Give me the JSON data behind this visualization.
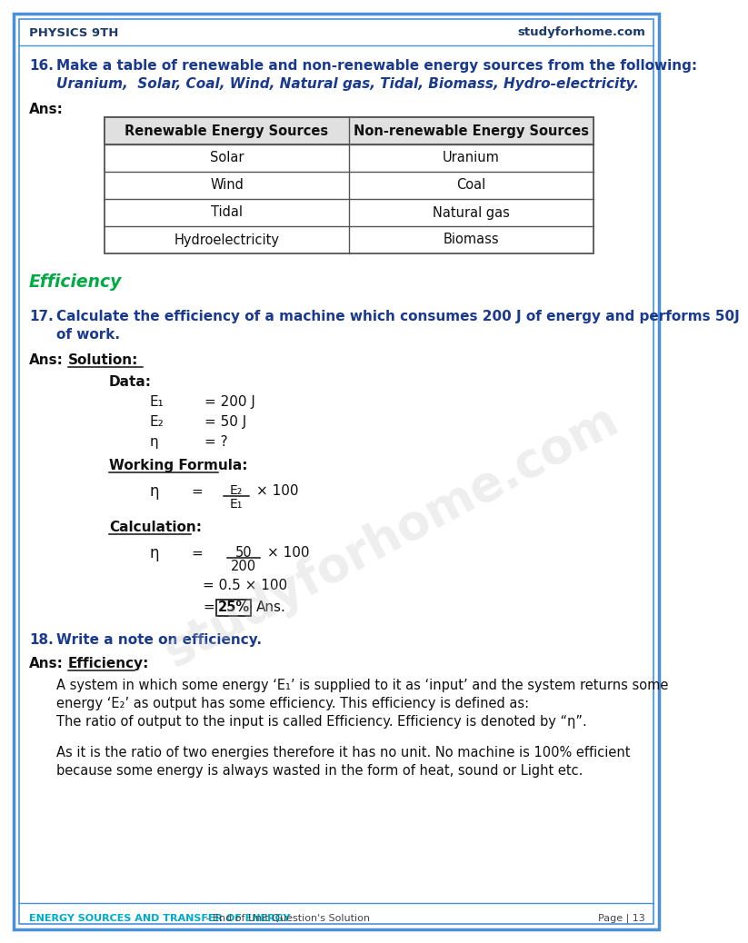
{
  "page_bg": "#ffffff",
  "border_color": "#4a90d9",
  "header_text_left": "PHYSICS 9TH",
  "header_text_right": "studyforhome.com",
  "header_color": "#1a3a6b",
  "footer_left": "ENERGY SOURCES AND TRANSFER OF ENERGY",
  "footer_middle": " - End of Unit Question's Solution",
  "footer_right": "Page | 13",
  "footer_color_left": "#00aacc",
  "footer_color_mid": "#444444",
  "q16_num": "16.",
  "q16_text": "Make a table of renewable and non-renewable energy sources from the following:",
  "q16_text2": "Uranium,  Solar, Coal, Wind, Natural gas, Tidal, Biomass, Hydro-electricity.",
  "q_color": "#1a3a8f",
  "ans_label": "Ans:",
  "table_headers": [
    "Renewable Energy Sources",
    "Non-renewable Energy Sources"
  ],
  "table_rows": [
    [
      "Solar",
      "Uranium"
    ],
    [
      "Wind",
      "Coal"
    ],
    [
      "Tidal",
      "Natural gas"
    ],
    [
      "Hydroelectricity",
      "Biomass"
    ]
  ],
  "table_header_bg": "#e0e0e0",
  "table_border": "#555555",
  "section_efficiency": "Efficiency",
  "section_color": "#00aa44",
  "q17_num": "17.",
  "q17_text": "Calculate the efficiency of a machine which consumes 200 J of energy and performs 50J",
  "q17_text2": "of work.",
  "ans17_solution": "Solution:",
  "ans17_data_label": "Data:",
  "ans17_e1_sym": "E₁",
  "ans17_e1_val": "= 200 J",
  "ans17_e2_sym": "E₂",
  "ans17_e2_val": "= 50 J",
  "ans17_eta_sym": "η",
  "ans17_eta_val": "= ?",
  "ans17_wf_label": "Working Formula:",
  "ans17_calc_label": "Calculation:",
  "q18_num": "18.",
  "q18_text": "Write a note on efficiency.",
  "ans18_eff_label": "Efficiency:",
  "ans18_p1": "A system in which some energy ‘E₁’ is supplied to it as ‘input’ and the system returns some",
  "ans18_p2": "energy ‘E₂’ as output has some efficiency. This efficiency is defined as:",
  "ans18_p3": "The ratio of output to the input is called Efficiency. Efficiency is denoted by “η”.",
  "ans18_p4": "As it is the ratio of two energies therefore it has no unit. No machine is 100% efficient",
  "ans18_p5": "because some energy is always wasted in the form of heat, sound or Light etc.",
  "watermark": "studyforhome.com",
  "watermark_color": "#c8c8c8"
}
